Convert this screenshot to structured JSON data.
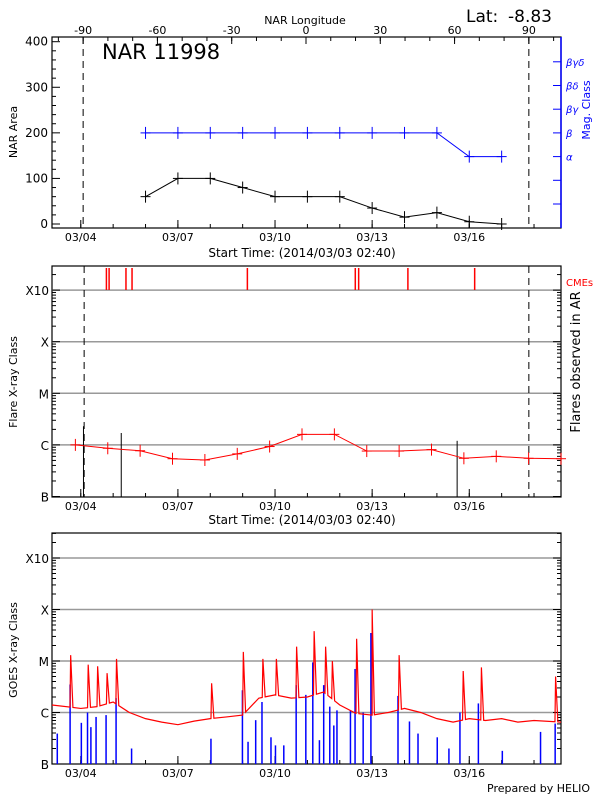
{
  "header": {
    "lat_label": "Lat:",
    "lat_value": "-8.83",
    "region_title": "NAR 11998"
  },
  "footer": {
    "credit": "Prepared by HELIO"
  },
  "colors": {
    "area": "#000000",
    "mag": "#0000ff",
    "flare_trend": "#ff0000",
    "cme": "#ff0000",
    "goes_long": "#ff0000",
    "goes_short": "#0000ff",
    "grid": "#999999"
  },
  "chart_data": [
    {
      "type": "line",
      "title": "NAR 11998",
      "xlabel": "Start Time: (2014/03/03 02:40)",
      "xlim": [
        "2014-03-03 02:40",
        "2014-03-18 20:00"
      ],
      "xticks": [
        "03/04",
        "03/07",
        "03/10",
        "03/13",
        "03/16"
      ],
      "top_xlabel": "NAR Longitude",
      "top_xticks": [
        -90,
        -60,
        -30,
        0,
        30,
        60,
        90
      ],
      "longitude_limb_dates": {
        "-90": "2014-03-04 01:45",
        "90": "2014-03-17 20:10"
      },
      "ylabel": "NAR Area",
      "ylim": [
        0,
        400
      ],
      "yticks": [
        0,
        100,
        200,
        300,
        400
      ],
      "y2label": "Mag. Class",
      "y2_ticks": [
        "",
        "",
        "α",
        "β",
        "βγ",
        "βδ",
        "βγδ"
      ],
      "series": [
        {
          "axis": "left",
          "color": "#000000",
          "x": [
            "2014-03-06 00:00",
            "2014-03-07 00:00",
            "2014-03-08 00:00",
            "2014-03-09 00:00",
            "2014-03-10 00:00",
            "2014-03-11 00:00",
            "2014-03-12 00:00",
            "2014-03-13 00:00",
            "2014-03-14 00:00",
            "2014-03-15 00:00",
            "2014-03-16 00:00",
            "2014-03-17 00:00"
          ],
          "values": [
            60,
            100,
            100,
            80,
            60,
            60,
            60,
            35,
            15,
            25,
            5,
            0
          ]
        },
        {
          "axis": "right",
          "color": "#0000ff",
          "x": [
            "2014-03-06 00:00",
            "2014-03-07 00:00",
            "2014-03-08 00:00",
            "2014-03-09 00:00",
            "2014-03-10 00:00",
            "2014-03-11 00:00",
            "2014-03-12 00:00",
            "2014-03-13 00:00",
            "2014-03-14 00:00",
            "2014-03-15 00:00",
            "2014-03-16 00:00",
            "2014-03-17 00:00"
          ],
          "values": [
            "β",
            "β",
            "β",
            "β",
            "β",
            "β",
            "β",
            "β",
            "β",
            "β",
            "α",
            "α"
          ]
        }
      ]
    },
    {
      "type": "line",
      "xlabel": "Start Time: (2014/03/03 02:40)",
      "xlim": [
        "2014-03-03 02:40",
        "2014-03-18 20:00"
      ],
      "xticks": [
        "03/04",
        "03/07",
        "03/10",
        "03/13",
        "03/16"
      ],
      "ylabel": "Flare X-ray Class",
      "y_scale": "log",
      "yticks": [
        "B",
        "C",
        "M",
        "X",
        "X10"
      ],
      "y2label": "Flares observed in AR",
      "grid": true,
      "cme_label": "CMEs",
      "cmes": [
        "2014-03-04 19:00",
        "2014-03-04 21:00",
        "2014-03-05 09:30",
        "2014-03-05 14:00",
        "2014-03-09 03:30",
        "2014-03-12 11:30",
        "2014-03-12 14:00",
        "2014-03-14 02:30",
        "2014-03-16 04:00"
      ],
      "flares": [
        {
          "time": "2014-03-04 02:00",
          "class": "C2.3"
        },
        {
          "time": "2014-03-05 06:00",
          "class": "C1.7"
        },
        {
          "time": "2014-03-15 15:00",
          "class": "C1.2"
        }
      ],
      "trend": {
        "x": [
          "2014-03-03 20:00",
          "2014-03-04 20:00",
          "2014-03-05 20:00",
          "2014-03-06 20:00",
          "2014-03-07 20:00",
          "2014-03-08 20:00",
          "2014-03-09 20:00",
          "2014-03-10 20:00",
          "2014-03-11 20:00",
          "2014-03-12 20:00",
          "2014-03-13 20:00",
          "2014-03-14 20:00",
          "2014-03-15 20:00",
          "2014-03-16 20:00",
          "2014-03-17 20:00",
          "2014-03-18 20:00"
        ],
        "values": [
          "C1.0",
          "B8.6",
          "B7.7",
          "B5.4",
          "B5.1",
          "B6.7",
          "B9.3",
          "C1.6",
          "C1.6",
          "B7.6",
          "B7.6",
          "B8.1",
          "B5.5",
          "B6.0",
          "B5.5",
          "B5.4"
        ]
      }
    },
    {
      "type": "line",
      "xlim": [
        "2014-03-03 02:40",
        "2014-03-18 20:00"
      ],
      "xticks": [
        "03/04",
        "03/07",
        "03/10",
        "03/13",
        "03/16"
      ],
      "ylabel": "GOES X-ray Class",
      "y_scale": "log",
      "yticks": [
        "B",
        "C",
        "M",
        "X",
        "X10"
      ],
      "grid": true,
      "long_channel": {
        "background": {
          "x": [
            "2014-03-03 02:40",
            "2014-03-04 00:00",
            "2014-03-04 12:00",
            "2014-03-05 00:00",
            "2014-03-05 12:00",
            "2014-03-06 00:00",
            "2014-03-06 12:00",
            "2014-03-07 00:00",
            "2014-03-07 12:00",
            "2014-03-08 00:00",
            "2014-03-08 12:00",
            "2014-03-09 00:00",
            "2014-03-09 12:00",
            "2014-03-10 00:00",
            "2014-03-10 12:00",
            "2014-03-11 00:00",
            "2014-03-11 12:00",
            "2014-03-12 00:00",
            "2014-03-12 12:00",
            "2014-03-13 00:00",
            "2014-03-13 12:00",
            "2014-03-14 00:00",
            "2014-03-14 12:00",
            "2014-03-15 00:00",
            "2014-03-15 12:00",
            "2014-03-16 00:00",
            "2014-03-16 12:00",
            "2014-03-17 00:00",
            "2014-03-17 12:00",
            "2014-03-18 00:00",
            "2014-03-18 20:00"
          ],
          "values": [
            "C1.4",
            "C1.2",
            "C1.3",
            "C1.6",
            "C1.0",
            "B7.6",
            "B6.5",
            "B5.8",
            "B6.8",
            "B7.6",
            "B8.2",
            "B8.9",
            "C1.9",
            "C2.2",
            "C1.9",
            "C2.0",
            "C2.5",
            "C1.4",
            "B9.6",
            "B8.9",
            "C1.0",
            "C1.2",
            "C1.0",
            "B7.6",
            "B6.5",
            "B7.6",
            "B7.0",
            "B7.6",
            "B6.5",
            "B7.0",
            "B6.5"
          ]
        },
        "peaks": [
          {
            "time": "2014-03-03 16:30",
            "class": "M1.3"
          },
          {
            "time": "2014-03-04 05:30",
            "class": "C8.5"
          },
          {
            "time": "2014-03-04 12:30",
            "class": "C7.9"
          },
          {
            "time": "2014-03-04 19:30",
            "class": "C5.8"
          },
          {
            "time": "2014-03-05 02:30",
            "class": "M1.1"
          },
          {
            "time": "2014-03-08 01:00",
            "class": "C3.7"
          },
          {
            "time": "2014-03-09 00:30",
            "class": "M1.5"
          },
          {
            "time": "2014-03-09 15:00",
            "class": "M1.1"
          },
          {
            "time": "2014-03-10 01:00",
            "class": "M1.1"
          },
          {
            "time": "2014-03-10 16:00",
            "class": "M1.9"
          },
          {
            "time": "2014-03-11 05:00",
            "class": "M3.8"
          },
          {
            "time": "2014-03-11 13:30",
            "class": "M1.9"
          },
          {
            "time": "2014-03-11 18:30",
            "class": "M1.0"
          },
          {
            "time": "2014-03-12 12:30",
            "class": "M2.7"
          },
          {
            "time": "2014-03-13 00:00",
            "class": "X1.0"
          },
          {
            "time": "2014-03-13 20:00",
            "class": "M1.3"
          },
          {
            "time": "2014-03-15 19:30",
            "class": "C6.4"
          },
          {
            "time": "2014-03-16 09:00",
            "class": "C7.5"
          },
          {
            "time": "2014-03-18 16:00",
            "class": "C5.0"
          }
        ]
      },
      "short_channel": [
        {
          "time": "2014-03-03 06:35",
          "class": "B3.9"
        },
        {
          "time": "2014-03-03 16:05",
          "class": "C3.5"
        },
        {
          "time": "2014-03-04 00:25",
          "class": "B6.3"
        },
        {
          "time": "2014-03-04 05:00",
          "class": "C1.0"
        },
        {
          "time": "2014-03-04 07:30",
          "class": "B5.2"
        },
        {
          "time": "2014-03-04 11:20",
          "class": "B8.2"
        },
        {
          "time": "2014-03-04 18:45",
          "class": "B8.9"
        },
        {
          "time": "2014-03-05 02:10",
          "class": "C1.9"
        },
        {
          "time": "2014-03-05 13:40",
          "class": "B2.0"
        },
        {
          "time": "2014-03-08 00:30",
          "class": "B3.1"
        },
        {
          "time": "2014-03-08 23:50",
          "class": "C2.7"
        },
        {
          "time": "2014-03-09 04:00",
          "class": "B2.7"
        },
        {
          "time": "2014-03-09 09:40",
          "class": "B7.1"
        },
        {
          "time": "2014-03-09 14:20",
          "class": "C1.6"
        },
        {
          "time": "2014-03-09 21:00",
          "class": "B3.3"
        },
        {
          "time": "2014-03-10 00:20",
          "class": "B2.3"
        },
        {
          "time": "2014-03-10 06:30",
          "class": "B2.3"
        },
        {
          "time": "2014-03-10 15:40",
          "class": "C3.4"
        },
        {
          "time": "2014-03-10 22:50",
          "class": "C2.2"
        },
        {
          "time": "2014-03-11 04:00",
          "class": "C9.4"
        },
        {
          "time": "2014-03-11 08:55",
          "class": "B2.9"
        },
        {
          "time": "2014-03-11 12:05",
          "class": "C3.4"
        },
        {
          "time": "2014-03-11 16:35",
          "class": "C1.3"
        },
        {
          "time": "2014-03-11 19:35",
          "class": "B5.6"
        },
        {
          "time": "2014-03-11 21:55",
          "class": "C1.1"
        },
        {
          "time": "2014-03-12 07:55",
          "class": "C1.1"
        },
        {
          "time": "2014-03-12 11:20",
          "class": "C7.0"
        },
        {
          "time": "2014-03-12 17:20",
          "class": "C1.0"
        },
        {
          "time": "2014-03-12 23:05",
          "class": "M3.5"
        },
        {
          "time": "2014-03-13 19:10",
          "class": "C2.1"
        },
        {
          "time": "2014-03-14 03:40",
          "class": "B6.7"
        },
        {
          "time": "2014-03-14 10:00",
          "class": "B3.9"
        },
        {
          "time": "2014-03-15 00:15",
          "class": "B3.3"
        },
        {
          "time": "2014-03-15 08:55",
          "class": "B2.0"
        },
        {
          "time": "2014-03-15 17:05",
          "class": "C1.0"
        },
        {
          "time": "2014-03-16 06:45",
          "class": "C1.5"
        },
        {
          "time": "2014-03-17 00:30",
          "class": "B1.8"
        },
        {
          "time": "2014-03-18 04:50",
          "class": "B4.2"
        },
        {
          "time": "2014-03-18 15:40",
          "class": "B6.1"
        }
      ]
    }
  ]
}
